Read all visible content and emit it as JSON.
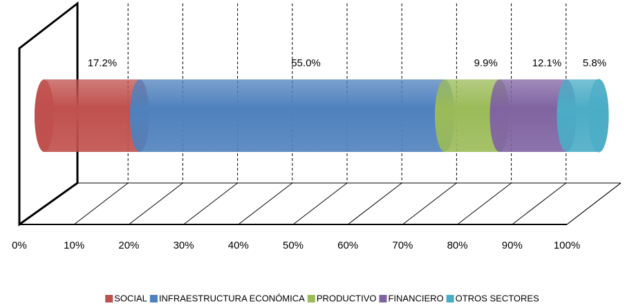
{
  "chart_data": {
    "type": "stacked-bar-3d",
    "categories": [
      null
    ],
    "series": [
      {
        "name": "SOCIAL",
        "color": "#c0504d",
        "values": [
          17.2
        ],
        "value_labels": [
          "17.2%"
        ]
      },
      {
        "name": "INFRAESTRUCTURA ECONÓMICA",
        "color": "#4f81bd",
        "values": [
          55.0
        ],
        "value_labels": [
          "55.0%"
        ]
      },
      {
        "name": "PRODUCTIVO",
        "color": "#9bbb59",
        "values": [
          9.9
        ],
        "value_labels": [
          "9.9%"
        ]
      },
      {
        "name": "FINANCIERO",
        "color": "#8064a2",
        "values": [
          12.1
        ],
        "value_labels": [
          "12.1%"
        ]
      },
      {
        "name": "OTROS SECTORES",
        "color": "#4bacc6",
        "values": [
          5.8
        ],
        "value_labels": [
          "5.8%"
        ]
      }
    ],
    "xlim": [
      0,
      100
    ],
    "xticks": [
      {
        "value": 0,
        "label": "0%"
      },
      {
        "value": 10,
        "label": "10%"
      },
      {
        "value": 20,
        "label": "20%"
      },
      {
        "value": 30,
        "label": "30%"
      },
      {
        "value": 40,
        "label": "40%"
      },
      {
        "value": 50,
        "label": "50%"
      },
      {
        "value": 60,
        "label": "60%"
      },
      {
        "value": 70,
        "label": "70%"
      },
      {
        "value": 80,
        "label": "80%"
      },
      {
        "value": 90,
        "label": "90%"
      },
      {
        "value": 100,
        "label": "100%"
      }
    ],
    "grid": true,
    "legend": "bottom"
  }
}
